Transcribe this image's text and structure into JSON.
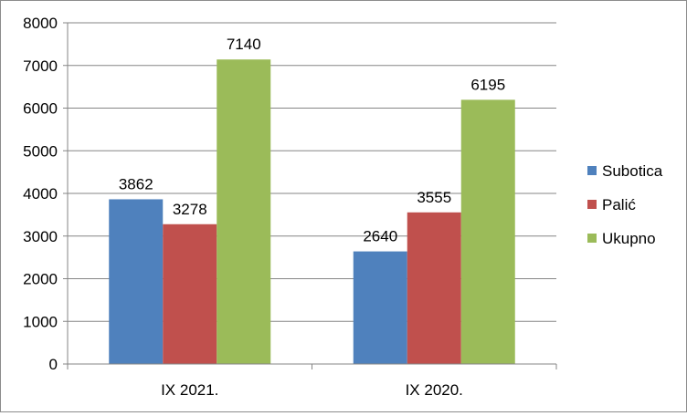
{
  "chart_data": {
    "type": "bar",
    "title": "",
    "xlabel": "",
    "ylabel": "",
    "categories": [
      "IX 2021.",
      "IX 2020."
    ],
    "series": [
      {
        "name": "Subotica",
        "values": [
          3862,
          2640
        ],
        "color": "#4F81BD"
      },
      {
        "name": "Palić",
        "values": [
          3278,
          3555
        ],
        "color": "#C0504D"
      },
      {
        "name": "Ukupno",
        "values": [
          7140,
          6195
        ],
        "color": "#9BBB59"
      }
    ],
    "ylim": [
      0,
      8000
    ],
    "yticks": [
      0,
      1000,
      2000,
      3000,
      4000,
      5000,
      6000,
      7000,
      8000
    ],
    "grid": true,
    "legend_position": "right",
    "data_labels": true
  }
}
